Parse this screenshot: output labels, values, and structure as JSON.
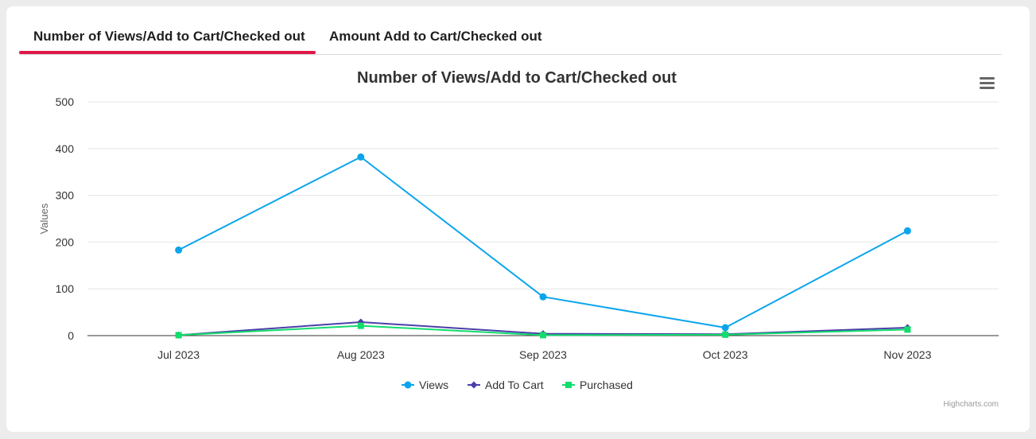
{
  "tabs": [
    {
      "label": "Number of Views/Add to Cart/Checked out",
      "active": true
    },
    {
      "label": "Amount Add to Cart/Checked out",
      "active": false
    }
  ],
  "accent_color": "#e0184a",
  "menu_icon": "hamburger-menu-icon",
  "credit": "Highcharts.com",
  "chart_data": {
    "type": "line",
    "title": "Number of Views/Add to Cart/Checked out",
    "xlabel": "",
    "ylabel": "Values",
    "ylim": [
      0,
      500
    ],
    "yticks": [
      0,
      100,
      200,
      300,
      400,
      500
    ],
    "grid": true,
    "legend_position": "bottom-center",
    "categories": [
      "Jul 2023",
      "Aug 2023",
      "Sep 2023",
      "Oct 2023",
      "Nov 2023"
    ],
    "series": [
      {
        "name": "Views",
        "color": "#0ba5ec",
        "marker": "circle",
        "values": [
          183,
          382,
          83,
          17,
          224
        ]
      },
      {
        "name": "Add To Cart",
        "color": "#4a3fa8",
        "marker": "diamond",
        "values": [
          1,
          29,
          4,
          3,
          17
        ]
      },
      {
        "name": "Purchased",
        "color": "#12dc6c",
        "marker": "square",
        "values": [
          1,
          21,
          1,
          2,
          13
        ]
      }
    ]
  }
}
